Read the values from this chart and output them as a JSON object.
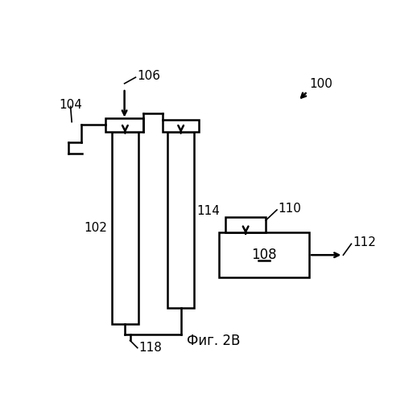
{
  "fig_label": "Фиг. 2B",
  "label_100": "100",
  "label_102": "102",
  "label_104": "104",
  "label_106": "106",
  "label_108": "108",
  "label_110": "110",
  "label_112": "112",
  "label_114": "114",
  "label_118": "118",
  "bg_color": "#ffffff",
  "line_color": "#000000",
  "font_size": 11
}
